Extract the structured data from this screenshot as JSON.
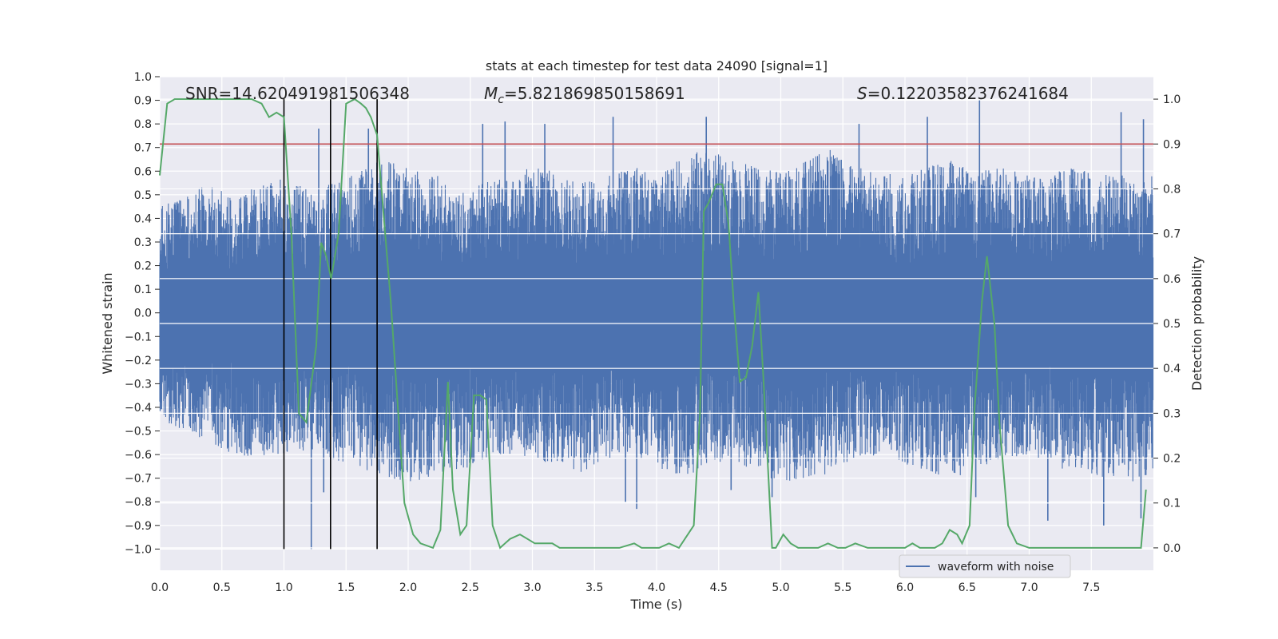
{
  "chart_data": {
    "type": "line",
    "title": "stats at each timestep for test data 24090 [signal=1]",
    "xlabel": "Time (s)",
    "ylabel": "Whitened strain",
    "y2label": "Detection probability",
    "xlim": [
      0.0,
      8.0
    ],
    "ylim": [
      -1.09,
      1.0
    ],
    "y2lim": [
      -0.05,
      1.05
    ],
    "xticks": [
      "0.0",
      "0.5",
      "1.0",
      "1.5",
      "2.0",
      "2.5",
      "3.0",
      "3.5",
      "4.0",
      "4.5",
      "5.0",
      "5.5",
      "6.0",
      "6.5",
      "7.0",
      "7.5"
    ],
    "yticks": [
      "1.0",
      "0.9",
      "0.8",
      "0.7",
      "0.6",
      "0.5",
      "0.4",
      "0.3",
      "0.2",
      "0.1",
      "0.0",
      "-0.1",
      "-0.2",
      "-0.3",
      "-0.4",
      "-0.5",
      "-0.6",
      "-0.7",
      "-0.8",
      "-0.9",
      "-1.0"
    ],
    "y2ticks": [
      "1.0",
      "0.9",
      "0.8",
      "0.7",
      "0.6",
      "0.5",
      "0.4",
      "0.3",
      "0.2",
      "0.1",
      "0.0"
    ],
    "annotations": {
      "snr": "SNR=14.620491981506348",
      "mc_symbol": "M",
      "mc_sub": "c",
      "mc_value": "=5.821869850158691",
      "s_symbol": "S",
      "s_value": "=0.12203582376241684"
    },
    "threshold": {
      "value": 0.9,
      "color": "#c44e52",
      "axis": "right"
    },
    "vertical_markers": [
      1.0,
      1.375,
      1.75
    ],
    "legend": {
      "label": "waveform with noise",
      "location": "lower-right"
    },
    "series": [
      {
        "name": "waveform with noise",
        "color": "#4c72b0",
        "axis": "left",
        "envelope_top": [
          0.45,
          0.5,
          0.55,
          0.5,
          0.55,
          0.58,
          0.52,
          0.55,
          0.6,
          0.65,
          0.62,
          0.6,
          0.5,
          0.55,
          0.58,
          0.62,
          0.6,
          0.55,
          0.58,
          0.62,
          0.6,
          0.65,
          0.7,
          0.65,
          0.62,
          0.6,
          0.65,
          0.7,
          0.62,
          0.6,
          0.58,
          0.62,
          0.65,
          0.6,
          0.62,
          0.58,
          0.6,
          0.62,
          0.6,
          0.58,
          0.6,
          0.65
        ],
        "envelope_bottom": [
          -0.45,
          -0.5,
          -0.55,
          -0.6,
          -0.62,
          -0.6,
          -0.58,
          -0.62,
          -0.65,
          -0.7,
          -0.72,
          -0.7,
          -0.68,
          -0.62,
          -0.6,
          -0.62,
          -0.65,
          -0.68,
          -0.62,
          -0.6,
          -0.65,
          -0.7,
          -0.65,
          -0.62,
          -0.68,
          -0.72,
          -0.7,
          -0.68,
          -0.62,
          -0.6,
          -0.65,
          -0.68,
          -0.7,
          -0.65,
          -0.62,
          -0.6,
          -0.65,
          -0.68,
          -0.7,
          -0.72,
          -0.68,
          -0.8
        ],
        "envelope_step": 0.2,
        "spikes": [
          [
            1.22,
            -1.0
          ],
          [
            1.28,
            0.78
          ],
          [
            1.32,
            -0.76
          ],
          [
            1.68,
            0.78
          ],
          [
            2.6,
            0.8
          ],
          [
            2.78,
            0.81
          ],
          [
            3.1,
            0.8
          ],
          [
            3.65,
            0.83
          ],
          [
            3.75,
            -0.8
          ],
          [
            3.84,
            -0.83
          ],
          [
            4.4,
            0.83
          ],
          [
            4.6,
            -0.75
          ],
          [
            4.93,
            -0.78
          ],
          [
            5.63,
            0.8
          ],
          [
            6.18,
            0.83
          ],
          [
            6.57,
            -0.78
          ],
          [
            6.6,
            0.9
          ],
          [
            7.15,
            -0.88
          ],
          [
            7.6,
            -0.9
          ],
          [
            7.74,
            0.85
          ],
          [
            7.9,
            -0.87
          ],
          [
            7.92,
            0.82
          ]
        ]
      },
      {
        "name": "detection probability",
        "color": "#55a868",
        "axis": "right",
        "x": [
          0.0,
          0.06,
          0.12,
          0.2,
          0.3,
          0.45,
          0.6,
          0.74,
          0.82,
          0.88,
          0.94,
          1.0,
          1.06,
          1.12,
          1.18,
          1.26,
          1.3,
          1.34,
          1.38,
          1.44,
          1.5,
          1.57,
          1.62,
          1.66,
          1.7,
          1.75,
          1.8,
          1.86,
          1.92,
          1.97,
          2.04,
          2.1,
          2.2,
          2.26,
          2.32,
          2.36,
          2.42,
          2.47,
          2.53,
          2.58,
          2.63,
          2.68,
          2.74,
          2.82,
          2.9,
          2.96,
          3.02,
          3.1,
          3.16,
          3.22,
          3.32,
          3.5,
          3.7,
          3.82,
          3.88,
          3.96,
          4.02,
          4.1,
          4.18,
          4.3,
          4.35,
          4.38,
          4.42,
          4.48,
          4.53,
          4.58,
          4.62,
          4.67,
          4.72,
          4.77,
          4.82,
          4.86,
          4.93,
          4.96,
          5.02,
          5.08,
          5.14,
          5.22,
          5.3,
          5.38,
          5.46,
          5.52,
          5.6,
          5.7,
          5.8,
          5.9,
          6.0,
          6.06,
          6.12,
          6.18,
          6.24,
          6.3,
          6.36,
          6.42,
          6.46,
          6.52,
          6.56,
          6.62,
          6.66,
          6.72,
          6.76,
          6.83,
          6.9,
          7.0,
          7.2,
          7.5,
          7.8,
          7.9,
          7.94
        ],
        "y": [
          0.83,
          0.99,
          1.0,
          1.0,
          1.0,
          1.0,
          1.0,
          1.0,
          0.99,
          0.96,
          0.97,
          0.96,
          0.7,
          0.3,
          0.28,
          0.45,
          0.68,
          0.65,
          0.6,
          0.7,
          0.99,
          1.0,
          0.99,
          0.98,
          0.96,
          0.92,
          0.75,
          0.55,
          0.3,
          0.1,
          0.03,
          0.01,
          0.0,
          0.04,
          0.37,
          0.13,
          0.03,
          0.05,
          0.34,
          0.34,
          0.33,
          0.05,
          0.0,
          0.02,
          0.03,
          0.02,
          0.01,
          0.01,
          0.01,
          0.0,
          0.0,
          0.0,
          0.0,
          0.01,
          0.0,
          0.0,
          0.0,
          0.01,
          0.0,
          0.05,
          0.3,
          0.75,
          0.77,
          0.81,
          0.81,
          0.72,
          0.55,
          0.37,
          0.38,
          0.45,
          0.57,
          0.38,
          0.0,
          0.0,
          0.03,
          0.01,
          0.0,
          0.0,
          0.0,
          0.01,
          0.0,
          0.0,
          0.01,
          0.0,
          0.0,
          0.0,
          0.0,
          0.01,
          0.0,
          0.0,
          0.0,
          0.01,
          0.04,
          0.03,
          0.01,
          0.05,
          0.31,
          0.55,
          0.65,
          0.5,
          0.28,
          0.05,
          0.01,
          0.0,
          0.0,
          0.0,
          0.0,
          0.0,
          0.13
        ]
      }
    ]
  }
}
